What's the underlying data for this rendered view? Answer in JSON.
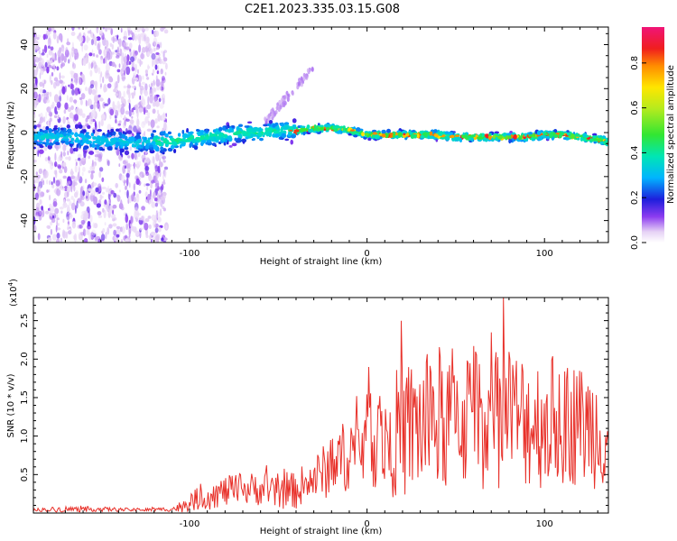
{
  "title": "C2E1.2023.335.03.15.G08",
  "colors": {
    "snr_line": "#e8312a",
    "axes": "#000000"
  },
  "chart_data": [
    {
      "type": "heatmap",
      "name": "spectrogram",
      "xlabel": "Height of straight line (km)",
      "ylabel": "Frequency (Hz)",
      "xlim": [
        -188,
        136
      ],
      "ylim": [
        -50,
        48
      ],
      "xticks": [
        -100,
        0,
        100
      ],
      "xtick_labels": [
        "-100",
        "0",
        "100"
      ],
      "yticks": [
        -40,
        -20,
        0,
        20,
        40
      ],
      "ytick_labels": [
        "-40",
        "-20",
        "0",
        "20",
        "40"
      ],
      "colorbar": {
        "label": "Normalized spectral amplitude",
        "range": [
          0,
          0.96
        ],
        "ticks": [
          0.0,
          0.2,
          0.4,
          0.6,
          0.8
        ],
        "tick_labels": [
          "0.0",
          "0.2",
          "0.4",
          "0.6",
          "0.8"
        ],
        "colormap": "rainbow-white-to-magenta"
      },
      "trace": {
        "x": [
          -185,
          -170,
          -160,
          -150,
          -140,
          -130,
          -120,
          -110,
          -100,
          -90,
          -80,
          -70,
          -60,
          -50,
          -40,
          -30,
          -20,
          -10,
          0,
          10,
          20,
          30,
          40,
          50,
          60,
          70,
          80,
          90,
          100,
          110,
          120,
          130,
          135
        ],
        "y": [
          -2,
          -2,
          -3,
          -4,
          -4,
          -5,
          -4,
          -4,
          -3,
          -2,
          -1,
          0,
          0,
          1,
          1,
          2,
          2,
          1,
          -1,
          -1,
          -1,
          -1,
          -1,
          -2,
          -2,
          -2,
          -2,
          -2,
          -1,
          -1,
          -2,
          -3,
          -4
        ]
      },
      "grid": false
    },
    {
      "type": "line",
      "name": "snr",
      "xlabel": "Height of straight line (km)",
      "ylabel": "SNR (10 * v/v)",
      "multiplier": "(x10",
      "multiplier_exp": "4",
      "multiplier_close": ")",
      "xlim": [
        -188,
        136
      ],
      "ylim": [
        0,
        2.8
      ],
      "xticks": [
        -100,
        0,
        100
      ],
      "xtick_labels": [
        "-100",
        "0",
        "100"
      ],
      "yticks": [
        0.5,
        1.0,
        1.5,
        2.0,
        2.5
      ],
      "ytick_labels": [
        "0.5",
        "1.0",
        "1.5",
        "2.0",
        "2.5"
      ],
      "envelope": {
        "x": [
          -188,
          -170,
          -150,
          -130,
          -110,
          -105,
          -100,
          -90,
          -80,
          -70,
          -60,
          -50,
          -40,
          -30,
          -20,
          -10,
          0,
          10,
          20,
          30,
          40,
          50,
          60,
          70,
          80,
          90,
          100,
          110,
          120,
          130,
          136
        ],
        "mean": [
          0.04,
          0.05,
          0.05,
          0.04,
          0.05,
          0.08,
          0.15,
          0.22,
          0.28,
          0.3,
          0.32,
          0.25,
          0.3,
          0.45,
          0.6,
          0.8,
          0.95,
          1.0,
          1.05,
          1.15,
          1.2,
          1.25,
          1.25,
          1.3,
          1.25,
          1.2,
          1.2,
          1.2,
          1.15,
          1.1,
          1.0
        ],
        "amp": [
          0.02,
          0.04,
          0.03,
          0.02,
          0.03,
          0.08,
          0.12,
          0.18,
          0.2,
          0.22,
          0.22,
          0.2,
          0.25,
          0.3,
          0.4,
          0.5,
          0.6,
          0.75,
          0.9,
          0.95,
          1.0,
          0.95,
          0.95,
          1.0,
          0.95,
          0.9,
          0.9,
          0.85,
          0.8,
          0.8,
          0.7
        ]
      },
      "samples": 620,
      "grid": false
    }
  ]
}
